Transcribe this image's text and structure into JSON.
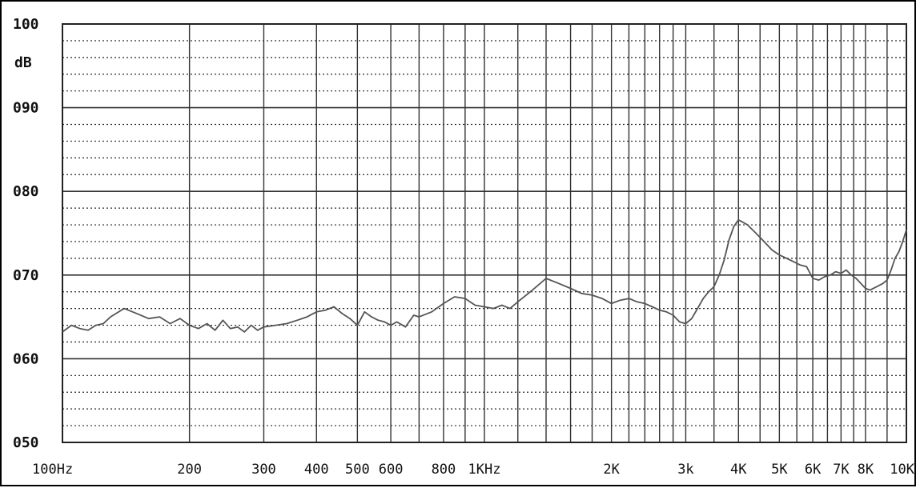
{
  "chart_data": {
    "type": "line",
    "title": "",
    "xlabel": "",
    "ylabel": "dB",
    "x_scale": "log",
    "xlim": [
      100,
      10000
    ],
    "ylim": [
      50,
      100
    ],
    "grid": true,
    "y_ticks": [
      {
        "value": 100,
        "label": "100"
      },
      {
        "value": 90,
        "label": "090"
      },
      {
        "value": 80,
        "label": "080"
      },
      {
        "value": 70,
        "label": "070"
      },
      {
        "value": 60,
        "label": "060"
      },
      {
        "value": 50,
        "label": "050"
      }
    ],
    "x_ticks": [
      {
        "value": 100,
        "label": "100Hz"
      },
      {
        "value": 200,
        "label": "200"
      },
      {
        "value": 300,
        "label": "300"
      },
      {
        "value": 400,
        "label": "400"
      },
      {
        "value": 500,
        "label": "500"
      },
      {
        "value": 600,
        "label": "600"
      },
      {
        "value": 800,
        "label": "800"
      },
      {
        "value": 1000,
        "label": "1KHz"
      },
      {
        "value": 2000,
        "label": "2K"
      },
      {
        "value": 3000,
        "label": "3k"
      },
      {
        "value": 4000,
        "label": "4K"
      },
      {
        "value": 5000,
        "label": "5K"
      },
      {
        "value": 6000,
        "label": "6K"
      },
      {
        "value": 7000,
        "label": "7K"
      },
      {
        "value": 8000,
        "label": "8K"
      },
      {
        "value": 10000,
        "label": "10K"
      }
    ],
    "x_gridlines": [
      100,
      200,
      300,
      400,
      500,
      600,
      700,
      800,
      900,
      1000,
      1200,
      1400,
      1600,
      1800,
      2000,
      2200,
      2400,
      2600,
      2800,
      3000,
      3500,
      4000,
      4500,
      5000,
      5500,
      6000,
      6500,
      7000,
      7500,
      8000,
      9000,
      10000
    ],
    "series": [
      {
        "color": "#555555",
        "x": [
          100,
          105,
          110,
          115,
          120,
          125,
          130,
          140,
          150,
          160,
          170,
          180,
          190,
          200,
          210,
          220,
          230,
          240,
          250,
          260,
          270,
          280,
          290,
          300,
          320,
          340,
          360,
          380,
          400,
          420,
          440,
          460,
          480,
          500,
          520,
          540,
          560,
          580,
          600,
          620,
          650,
          680,
          700,
          750,
          800,
          850,
          900,
          950,
          1000,
          1050,
          1100,
          1150,
          1200,
          1300,
          1400,
          1500,
          1600,
          1700,
          1800,
          1900,
          2000,
          2100,
          2200,
          2300,
          2400,
          2500,
          2600,
          2700,
          2800,
          2900,
          3000,
          3100,
          3200,
          3300,
          3400,
          3500,
          3600,
          3700,
          3800,
          3900,
          4000,
          4200,
          4400,
          4600,
          4800,
          5000,
          5200,
          5400,
          5600,
          5800,
          6000,
          6200,
          6400,
          6600,
          6800,
          7000,
          7200,
          7400,
          7600,
          7800,
          8000,
          8200,
          8500,
          8800,
          9000,
          9200,
          9400,
          9600,
          9800,
          10000
        ],
        "y": [
          63.2,
          64.0,
          63.6,
          63.4,
          64.0,
          64.2,
          65.0,
          66.0,
          65.4,
          64.8,
          65.0,
          64.2,
          64.8,
          64.0,
          63.6,
          64.2,
          63.4,
          64.6,
          63.6,
          63.8,
          63.2,
          64.0,
          63.4,
          63.8,
          64.0,
          64.2,
          64.6,
          65.0,
          65.6,
          65.8,
          66.2,
          65.4,
          64.8,
          64.0,
          65.6,
          65.0,
          64.6,
          64.4,
          64.0,
          64.4,
          63.8,
          65.2,
          65.0,
          65.6,
          66.6,
          67.4,
          67.2,
          66.4,
          66.2,
          66.0,
          66.4,
          66.0,
          66.8,
          68.2,
          69.6,
          69.0,
          68.4,
          67.8,
          67.6,
          67.2,
          66.6,
          67.0,
          67.2,
          66.8,
          66.6,
          66.2,
          65.8,
          65.6,
          65.2,
          64.4,
          64.2,
          64.8,
          66.0,
          67.2,
          68.0,
          68.6,
          70.0,
          71.8,
          74.2,
          75.8,
          76.6,
          76.0,
          75.0,
          74.0,
          73.0,
          72.4,
          72.0,
          71.6,
          71.2,
          71.0,
          69.6,
          69.4,
          69.8,
          70.0,
          70.4,
          70.2,
          70.6,
          70.0,
          69.6,
          69.0,
          68.4,
          68.2,
          68.6,
          69.0,
          69.4,
          70.6,
          72.0,
          72.8,
          74.0,
          75.4
        ]
      }
    ]
  }
}
